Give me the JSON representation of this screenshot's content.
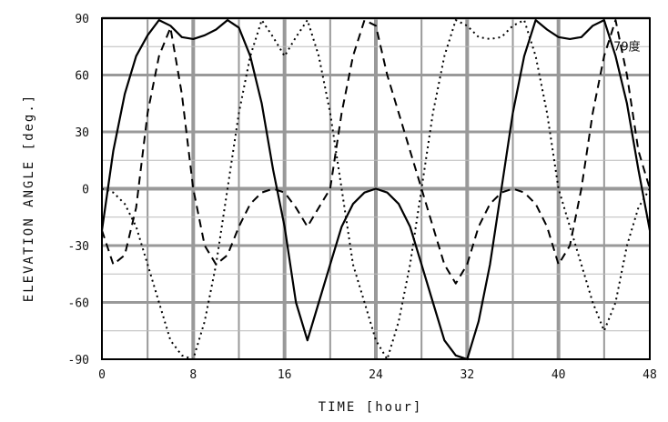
{
  "chart_data": {
    "type": "line",
    "title": "",
    "xlabel": "TIME [hour]",
    "ylabel": "ELEVATION ANGLE [deg.]",
    "xlim": [
      0,
      48
    ],
    "ylim": [
      -90,
      90
    ],
    "xticks": [
      0,
      8,
      16,
      24,
      32,
      40,
      48
    ],
    "yticks": [
      90,
      60,
      30,
      0,
      -30,
      -60,
      -90
    ],
    "grid": true,
    "annotations": [
      {
        "text": "79度",
        "x": 46,
        "y": 75
      }
    ],
    "series": [
      {
        "style": "solid",
        "x": [
          0,
          1,
          2,
          3,
          4,
          5,
          6,
          7,
          8,
          9,
          10,
          11,
          12,
          13,
          14,
          15,
          16,
          17,
          18,
          19,
          20,
          21,
          22,
          23,
          24,
          25,
          26,
          27,
          28,
          29,
          30,
          31,
          32,
          33,
          34,
          35,
          36,
          37,
          38,
          39,
          40,
          41,
          42,
          43,
          44,
          45,
          46,
          47,
          48
        ],
        "y": [
          -22,
          20,
          50,
          70,
          81,
          89,
          86,
          80,
          79,
          81,
          84,
          89,
          85,
          70,
          45,
          10,
          -20,
          -60,
          -80,
          -60,
          -40,
          -20,
          -8,
          -2,
          0,
          -2,
          -8,
          -20,
          -40,
          -60,
          -80,
          -88,
          -90,
          -70,
          -40,
          0,
          40,
          70,
          89,
          84,
          80,
          79,
          80,
          86,
          89,
          70,
          45,
          10,
          -22
        ]
      },
      {
        "style": "dashed",
        "x": [
          0,
          1,
          2,
          3,
          4,
          5,
          6,
          7,
          8,
          9,
          10,
          11,
          12,
          13,
          14,
          15,
          16,
          17,
          18,
          19,
          20,
          21,
          22,
          23,
          24,
          25,
          26,
          27,
          28,
          29,
          30,
          31,
          32,
          33,
          34,
          35,
          36,
          37,
          38,
          39,
          40,
          41,
          42,
          43,
          44,
          45,
          46,
          47,
          48
        ],
        "y": [
          -22,
          -40,
          -35,
          -10,
          40,
          70,
          85,
          50,
          0,
          -30,
          -40,
          -35,
          -20,
          -8,
          -2,
          0,
          -2,
          -10,
          -20,
          -10,
          0,
          40,
          70,
          89,
          86,
          60,
          40,
          20,
          0,
          -20,
          -40,
          -50,
          -40,
          -20,
          -8,
          -2,
          0,
          -2,
          -8,
          -20,
          -40,
          -30,
          0,
          40,
          70,
          89,
          60,
          20,
          0
        ]
      },
      {
        "style": "dotted",
        "x": [
          0,
          1,
          2,
          3,
          4,
          5,
          6,
          7,
          8,
          9,
          10,
          11,
          12,
          13,
          14,
          15,
          16,
          17,
          18,
          19,
          20,
          21,
          22,
          23,
          24,
          25,
          26,
          27,
          28,
          29,
          30,
          31,
          32,
          33,
          34,
          35,
          36,
          37,
          38,
          39,
          40,
          41,
          42,
          43,
          44,
          45,
          46,
          47,
          48
        ],
        "y": [
          0,
          -2,
          -8,
          -20,
          -40,
          -60,
          -80,
          -88,
          -90,
          -70,
          -40,
          0,
          40,
          70,
          89,
          80,
          70,
          80,
          89,
          70,
          40,
          0,
          -40,
          -60,
          -80,
          -90,
          -70,
          -40,
          0,
          40,
          70,
          89,
          86,
          80,
          79,
          80,
          86,
          89,
          70,
          40,
          0,
          -20,
          -40,
          -60,
          -75,
          -60,
          -30,
          -10,
          0
        ]
      }
    ]
  }
}
